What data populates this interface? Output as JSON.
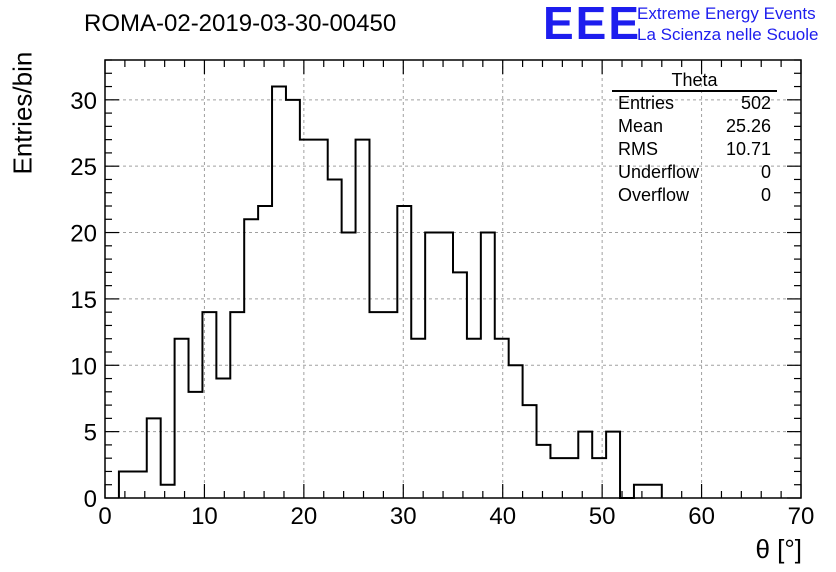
{
  "header": {
    "title": "ROMA-02-2019-03-30-00450",
    "logo_text": "EEE",
    "logo_line1": "Extreme Energy Events",
    "logo_line2": "La Scienza nelle Scuole"
  },
  "stats": {
    "name": "Theta",
    "rows": [
      {
        "label": "Entries",
        "value": "502"
      },
      {
        "label": "Mean",
        "value": "25.26"
      },
      {
        "label": "RMS",
        "value": "10.71"
      },
      {
        "label": "Underflow",
        "value": "0"
      },
      {
        "label": "Overflow",
        "value": "0"
      }
    ]
  },
  "colors": {
    "logo": "#1d1dee",
    "line": "#000000",
    "grid": "#a0a0a0"
  },
  "chart_data": {
    "type": "bar",
    "style": "step-histogram",
    "title": "ROMA-02-2019-03-30-00450",
    "xlabel": "θ [°]",
    "ylabel": "Entries/bin",
    "xlim": [
      0,
      70
    ],
    "ylim": [
      0,
      33
    ],
    "xticks": [
      0,
      10,
      20,
      30,
      40,
      50,
      60,
      70
    ],
    "yticks": [
      0,
      5,
      10,
      15,
      20,
      25,
      30
    ],
    "grid": true,
    "bin_edges": [
      1.4,
      2.8,
      4.2,
      5.6,
      7.0,
      8.4,
      9.8,
      11.2,
      12.6,
      14.0,
      15.4,
      16.8,
      18.2,
      19.6,
      21.0,
      22.4,
      23.8,
      25.2,
      26.6,
      28.0,
      29.4,
      30.8,
      32.2,
      33.6,
      35.0,
      36.4,
      37.8,
      39.2,
      40.6,
      42.0,
      43.4,
      44.8,
      46.2,
      47.6,
      49.0,
      50.4,
      51.8,
      53.2,
      54.6,
      56.0
    ],
    "values": [
      2,
      2,
      6,
      1,
      12,
      8,
      14,
      9,
      14,
      21,
      22,
      31,
      30,
      27,
      27,
      24,
      20,
      27,
      14,
      14,
      22,
      12,
      20,
      20,
      17,
      12,
      20,
      12,
      10,
      7,
      4,
      3,
      3,
      5,
      3,
      5,
      0,
      1,
      1
    ]
  }
}
